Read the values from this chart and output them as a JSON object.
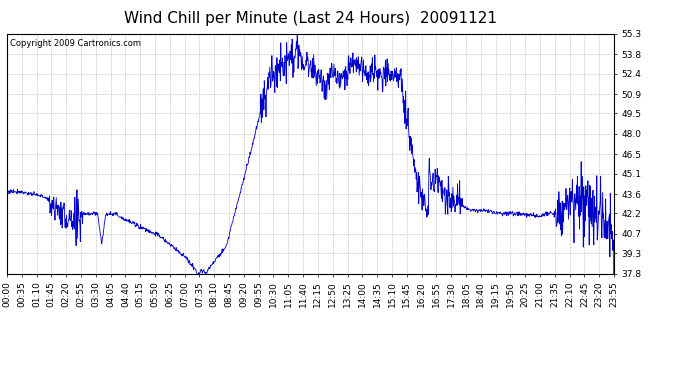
{
  "title": "Wind Chill per Minute (Last 24 Hours)  20091121",
  "copyright": "Copyright 2009 Cartronics.com",
  "line_color": "#0000cc",
  "background_color": "#ffffff",
  "grid_color": "#aaaaaa",
  "ylim": [
    37.8,
    55.3
  ],
  "yticks": [
    37.8,
    39.3,
    40.7,
    42.2,
    43.6,
    45.1,
    46.5,
    48.0,
    49.5,
    50.9,
    52.4,
    53.8,
    55.3
  ],
  "xtick_labels": [
    "00:00",
    "00:35",
    "01:10",
    "01:45",
    "02:20",
    "02:55",
    "03:30",
    "04:05",
    "04:40",
    "05:15",
    "05:50",
    "06:25",
    "07:00",
    "07:35",
    "08:10",
    "08:45",
    "09:20",
    "09:55",
    "10:30",
    "11:05",
    "11:40",
    "12:15",
    "12:50",
    "13:25",
    "14:00",
    "14:35",
    "15:10",
    "15:45",
    "16:20",
    "16:55",
    "17:30",
    "18:05",
    "18:40",
    "19:15",
    "19:50",
    "20:25",
    "21:00",
    "21:35",
    "22:10",
    "22:45",
    "23:20",
    "23:55"
  ],
  "title_fontsize": 11,
  "label_fontsize": 6.5,
  "copyright_fontsize": 6
}
